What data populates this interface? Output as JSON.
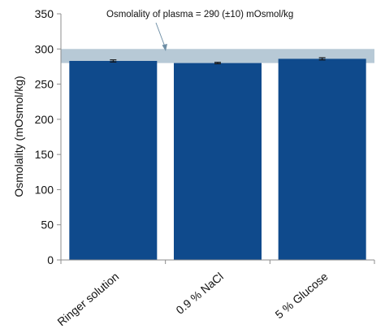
{
  "chart_data": {
    "type": "bar",
    "title": "",
    "xlabel": "",
    "ylabel": "Osmolality (mOsmol/kg)",
    "categories": [
      "Ringer solution",
      "0.9 % NaCl",
      "5 % Glucose"
    ],
    "values": [
      283,
      280,
      286
    ],
    "errors": [
      1.5,
      1,
      1.5
    ],
    "ylim": [
      0,
      350
    ],
    "yticks": [
      0,
      50,
      100,
      150,
      200,
      250,
      300,
      350
    ],
    "reference_band": {
      "label": "Osmolality of plasma = 290 (±10) mOsmol/kg",
      "low": 280,
      "high": 300
    },
    "grid": false,
    "legend": "none",
    "colors": {
      "bar": "#0f4a8c",
      "band": "#b7c9d6",
      "axis": "#8c8c8c",
      "error": "#111111",
      "arrow": "#6f8fa6"
    }
  }
}
